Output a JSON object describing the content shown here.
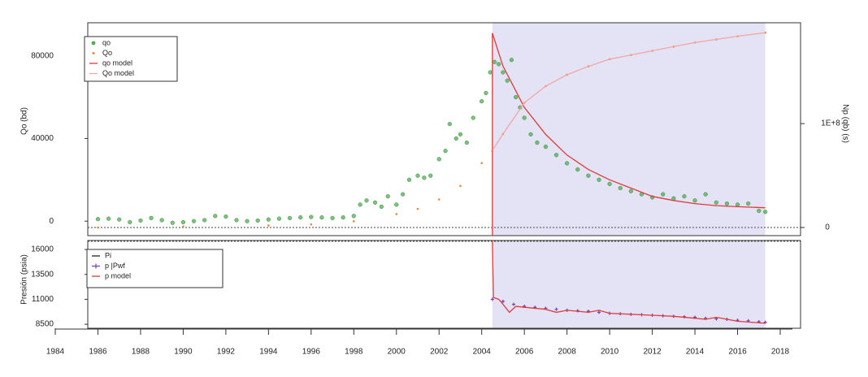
{
  "chart_data": [
    {
      "type": "line",
      "ylabel": "Qo (bd)",
      "y2label": "Np (qb) (s)",
      "ylim": [
        -7000,
        96000
      ],
      "yticks": [
        0,
        40000,
        80000
      ],
      "y2lim": [
        -7800000,
        197000000
      ],
      "y2ticks": [
        0,
        {
          "value": 100000000,
          "label": "1E+8"
        }
      ],
      "xlim": [
        1984,
        2018
      ],
      "highlight_x": [
        2004.5,
        2017.3
      ],
      "series": [
        {
          "name": "qo",
          "color": "#4caf50",
          "style": "dots",
          "x": [
            1986,
            1986.5,
            1987,
            1987.5,
            1988,
            1988.5,
            1989,
            1989.5,
            1990,
            1990.5,
            1991,
            1991.5,
            1992,
            1992.5,
            1993,
            1993.5,
            1994,
            1994.5,
            1995,
            1995.5,
            1996,
            1996.5,
            1997,
            1997.5,
            1998,
            1998.3,
            1998.6,
            1999,
            1999.3,
            1999.6,
            2000,
            2000.3,
            2000.6,
            2001,
            2001.3,
            2001.6,
            2002,
            2002.3,
            2002.5,
            2002.8,
            2003,
            2003.3,
            2003.6,
            2004,
            2004.2,
            2004.4,
            2004.6,
            2004.8,
            2005,
            2005.2,
            2005.4,
            2005.6,
            2005.8,
            2006,
            2006.3,
            2006.6,
            2007,
            2007.5,
            2008,
            2008.5,
            2009,
            2009.5,
            2010,
            2010.5,
            2011,
            2011.5,
            2012,
            2012.5,
            2013,
            2013.5,
            2014,
            2014.5,
            2015,
            2015.5,
            2016,
            2016.5,
            2017,
            2017.3
          ],
          "values": [
            1000,
            1200,
            800,
            -500,
            300,
            1500,
            500,
            -800,
            -500,
            0,
            500,
            2500,
            2200,
            500,
            0,
            300,
            800,
            1200,
            1500,
            1800,
            2000,
            1800,
            1500,
            1800,
            2500,
            8000,
            10000,
            9000,
            7000,
            12000,
            8000,
            13000,
            20000,
            22000,
            21000,
            22000,
            30000,
            34000,
            47000,
            40000,
            42000,
            38000,
            50000,
            58000,
            62000,
            72000,
            77000,
            76000,
            72000,
            68000,
            78000,
            60000,
            55000,
            50000,
            42000,
            38000,
            36000,
            32000,
            28000,
            25000,
            22000,
            20000,
            18000,
            16000,
            14500,
            13000,
            11500,
            13000,
            11000,
            12000,
            10000,
            13000,
            9000,
            8500,
            8000,
            8500,
            5000,
            4500
          ]
        },
        {
          "name": "Qo",
          "color": "#e8893a",
          "style": "dots",
          "axis": "y2",
          "x": [
            1986,
            1990,
            1994,
            1996,
            1998,
            2000,
            2001,
            2002,
            2003,
            2004,
            2004.5,
            2005,
            2006,
            2007,
            2008,
            2009,
            2010,
            2011,
            2012,
            2013,
            2014,
            2015,
            2016,
            2017.3
          ],
          "values": [
            0,
            1000000,
            2000000,
            3000000,
            6000000,
            13000000,
            18000000,
            27000000,
            40000000,
            62000000,
            74000000,
            90000000,
            120000000,
            136000000,
            147000000,
            155000000,
            162000000,
            166000000,
            170000000,
            174000000,
            178000000,
            181000000,
            184000000,
            187500000
          ]
        },
        {
          "name": "qo model",
          "color": "#e03a3a",
          "style": "line",
          "x": [
            2004.5,
            2004.5,
            2005,
            2005.5,
            2006,
            2007,
            2008,
            2009,
            2010,
            2011,
            2012,
            2013,
            2014,
            2015,
            2016,
            2017.3
          ],
          "values": [
            -7000,
            91000,
            75000,
            65000,
            55000,
            42000,
            32000,
            25000,
            20000,
            16000,
            12000,
            10000,
            8500,
            7500,
            7000,
            6500
          ]
        },
        {
          "name": "Qo model",
          "color": "#f2a7a7",
          "style": "line",
          "axis": "y2",
          "x": [
            2004.5,
            2005,
            2006,
            2007,
            2008,
            2009,
            2010,
            2011,
            2012,
            2013,
            2014,
            2015,
            2016,
            2017.3
          ],
          "values": [
            74000000,
            90000000,
            120000000,
            136000000,
            147000000,
            155000000,
            162000000,
            166000000,
            170000000,
            174000000,
            178000000,
            181000000,
            184000000,
            187500000
          ]
        }
      ]
    },
    {
      "type": "line",
      "ylabel": "Presión (psia)",
      "ylim": [
        8100,
        16900
      ],
      "yticks": [
        8500,
        11000,
        13500,
        16000
      ],
      "xlim": [
        1984,
        2018
      ],
      "xticks": [
        1984,
        1986,
        1988,
        1990,
        1992,
        1994,
        1996,
        1998,
        2000,
        2002,
        2004,
        2006,
        2008,
        2010,
        2012,
        2014,
        2016,
        2018
      ],
      "highlight_x": [
        2004.5,
        2017.3
      ],
      "series": [
        {
          "name": "Pi",
          "color": "#222222",
          "style": "line",
          "x": [],
          "values": []
        },
        {
          "name": "p |Pwf",
          "color": "#7a3db8",
          "style": "plus",
          "x": [
            2004.5,
            2005,
            2005.5,
            2006,
            2006.5,
            2007,
            2007.5,
            2008,
            2008.5,
            2009,
            2009.5,
            2010,
            2010.5,
            2011,
            2011.5,
            2012,
            2012.5,
            2013,
            2013.5,
            2014,
            2014.5,
            2015,
            2015.5,
            2016,
            2016.5,
            2017,
            2017.3
          ],
          "values": [
            11000,
            10800,
            10500,
            10300,
            10200,
            10100,
            10000,
            9900,
            9850,
            9800,
            9700,
            9600,
            9550,
            9500,
            9450,
            9400,
            9350,
            9300,
            9250,
            9200,
            9100,
            9050,
            9000,
            8900,
            8850,
            8750,
            8700
          ]
        },
        {
          "name": "p model",
          "color": "#e03a3a",
          "style": "line",
          "x": [
            2004.5,
            2004.55,
            2004.8,
            2005,
            2005.3,
            2005.6,
            2006,
            2007,
            2007.5,
            2008,
            2009,
            2009.5,
            2010,
            2011,
            2012,
            2013,
            2014,
            2014.5,
            2015,
            2016,
            2017.3
          ],
          "values": [
            16800,
            11200,
            11000,
            10500,
            9700,
            10300,
            10200,
            10000,
            9700,
            9900,
            9700,
            9900,
            9600,
            9500,
            9400,
            9300,
            9100,
            9000,
            9200,
            8800,
            8600
          ]
        }
      ]
    }
  ]
}
